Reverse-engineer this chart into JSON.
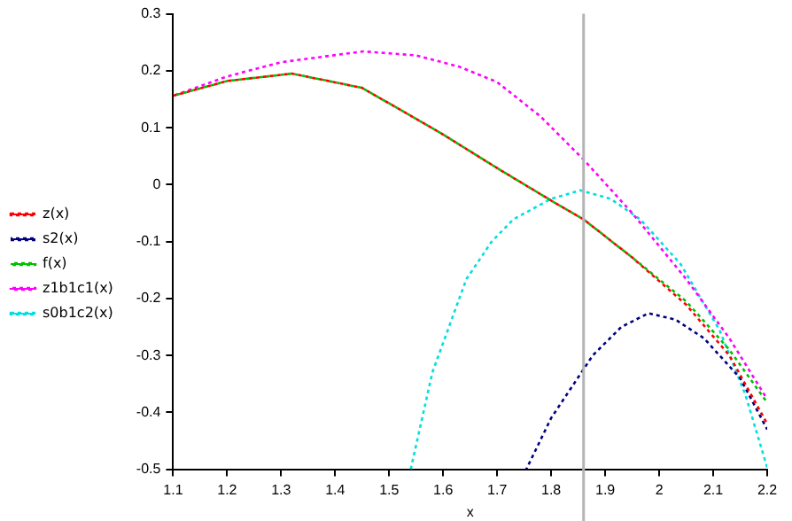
{
  "chart_data": {
    "type": "line",
    "xlabel": "x",
    "xlim": [
      1.1,
      2.2
    ],
    "xticks": [
      1.1,
      1.2,
      1.3,
      1.4,
      1.5,
      1.6,
      1.7,
      1.8,
      1.9,
      2,
      2.1,
      2.2
    ],
    "ylim": [
      -0.5,
      0.3
    ],
    "yticks": [
      -0.5,
      -0.4,
      -0.3,
      -0.2,
      -0.1,
      0,
      0.1,
      0.2,
      0.3
    ],
    "grid": false,
    "legend": "left",
    "marker": "none",
    "line_style": "dotted",
    "ref_lines": [
      {
        "axis": "x",
        "value": 1.86,
        "color": "#b4b4b4"
      }
    ],
    "series": [
      {
        "name": "z(x)",
        "color": "#ff0000",
        "x": [
          1.1,
          1.2,
          1.32,
          1.45,
          1.525,
          1.6,
          1.7,
          1.8,
          1.86,
          1.95,
          2.05,
          2.13,
          2.2
        ],
        "values": [
          0.156,
          0.182,
          0.195,
          0.17,
          0.129,
          0.088,
          0.029,
          -0.028,
          -0.061,
          -0.128,
          -0.211,
          -0.3,
          -0.42
        ]
      },
      {
        "name": "s2(x)",
        "color": "#000080",
        "x": [
          1.754,
          1.8,
          1.877,
          1.93,
          1.98,
          2.03,
          2.083,
          2.15,
          2.2
        ],
        "values": [
          -0.5,
          -0.41,
          -0.3,
          -0.25,
          -0.226,
          -0.237,
          -0.27,
          -0.34,
          -0.43
        ]
      },
      {
        "name": "f(x)",
        "color": "#00c000",
        "x": [
          1.1,
          1.2,
          1.32,
          1.45,
          1.525,
          1.6,
          1.7,
          1.8,
          1.86,
          1.95,
          2.05,
          2.13,
          2.2
        ],
        "values": [
          0.156,
          0.182,
          0.195,
          0.17,
          0.129,
          0.088,
          0.029,
          -0.028,
          -0.061,
          -0.128,
          -0.205,
          -0.29,
          -0.383
        ]
      },
      {
        "name": "z1b1c1(x)",
        "color": "#ff00ff",
        "x": [
          1.1,
          1.2,
          1.3,
          1.452,
          1.55,
          1.63,
          1.7,
          1.78,
          1.86,
          1.95,
          2.05,
          2.13,
          2.2
        ],
        "values": [
          0.156,
          0.19,
          0.215,
          0.234,
          0.227,
          0.207,
          0.18,
          0.12,
          0.044,
          -0.05,
          -0.166,
          -0.27,
          -0.377
        ]
      },
      {
        "name": "s0b1c2(x)",
        "color": "#00e0e0",
        "x": [
          1.54,
          1.58,
          1.643,
          1.69,
          1.73,
          1.8,
          1.854,
          1.91,
          1.965,
          2.04,
          2.112,
          2.16,
          2.2
        ],
        "values": [
          -0.5,
          -0.33,
          -0.166,
          -0.1,
          -0.061,
          -0.025,
          -0.01,
          -0.025,
          -0.061,
          -0.14,
          -0.256,
          -0.37,
          -0.497
        ]
      }
    ]
  }
}
